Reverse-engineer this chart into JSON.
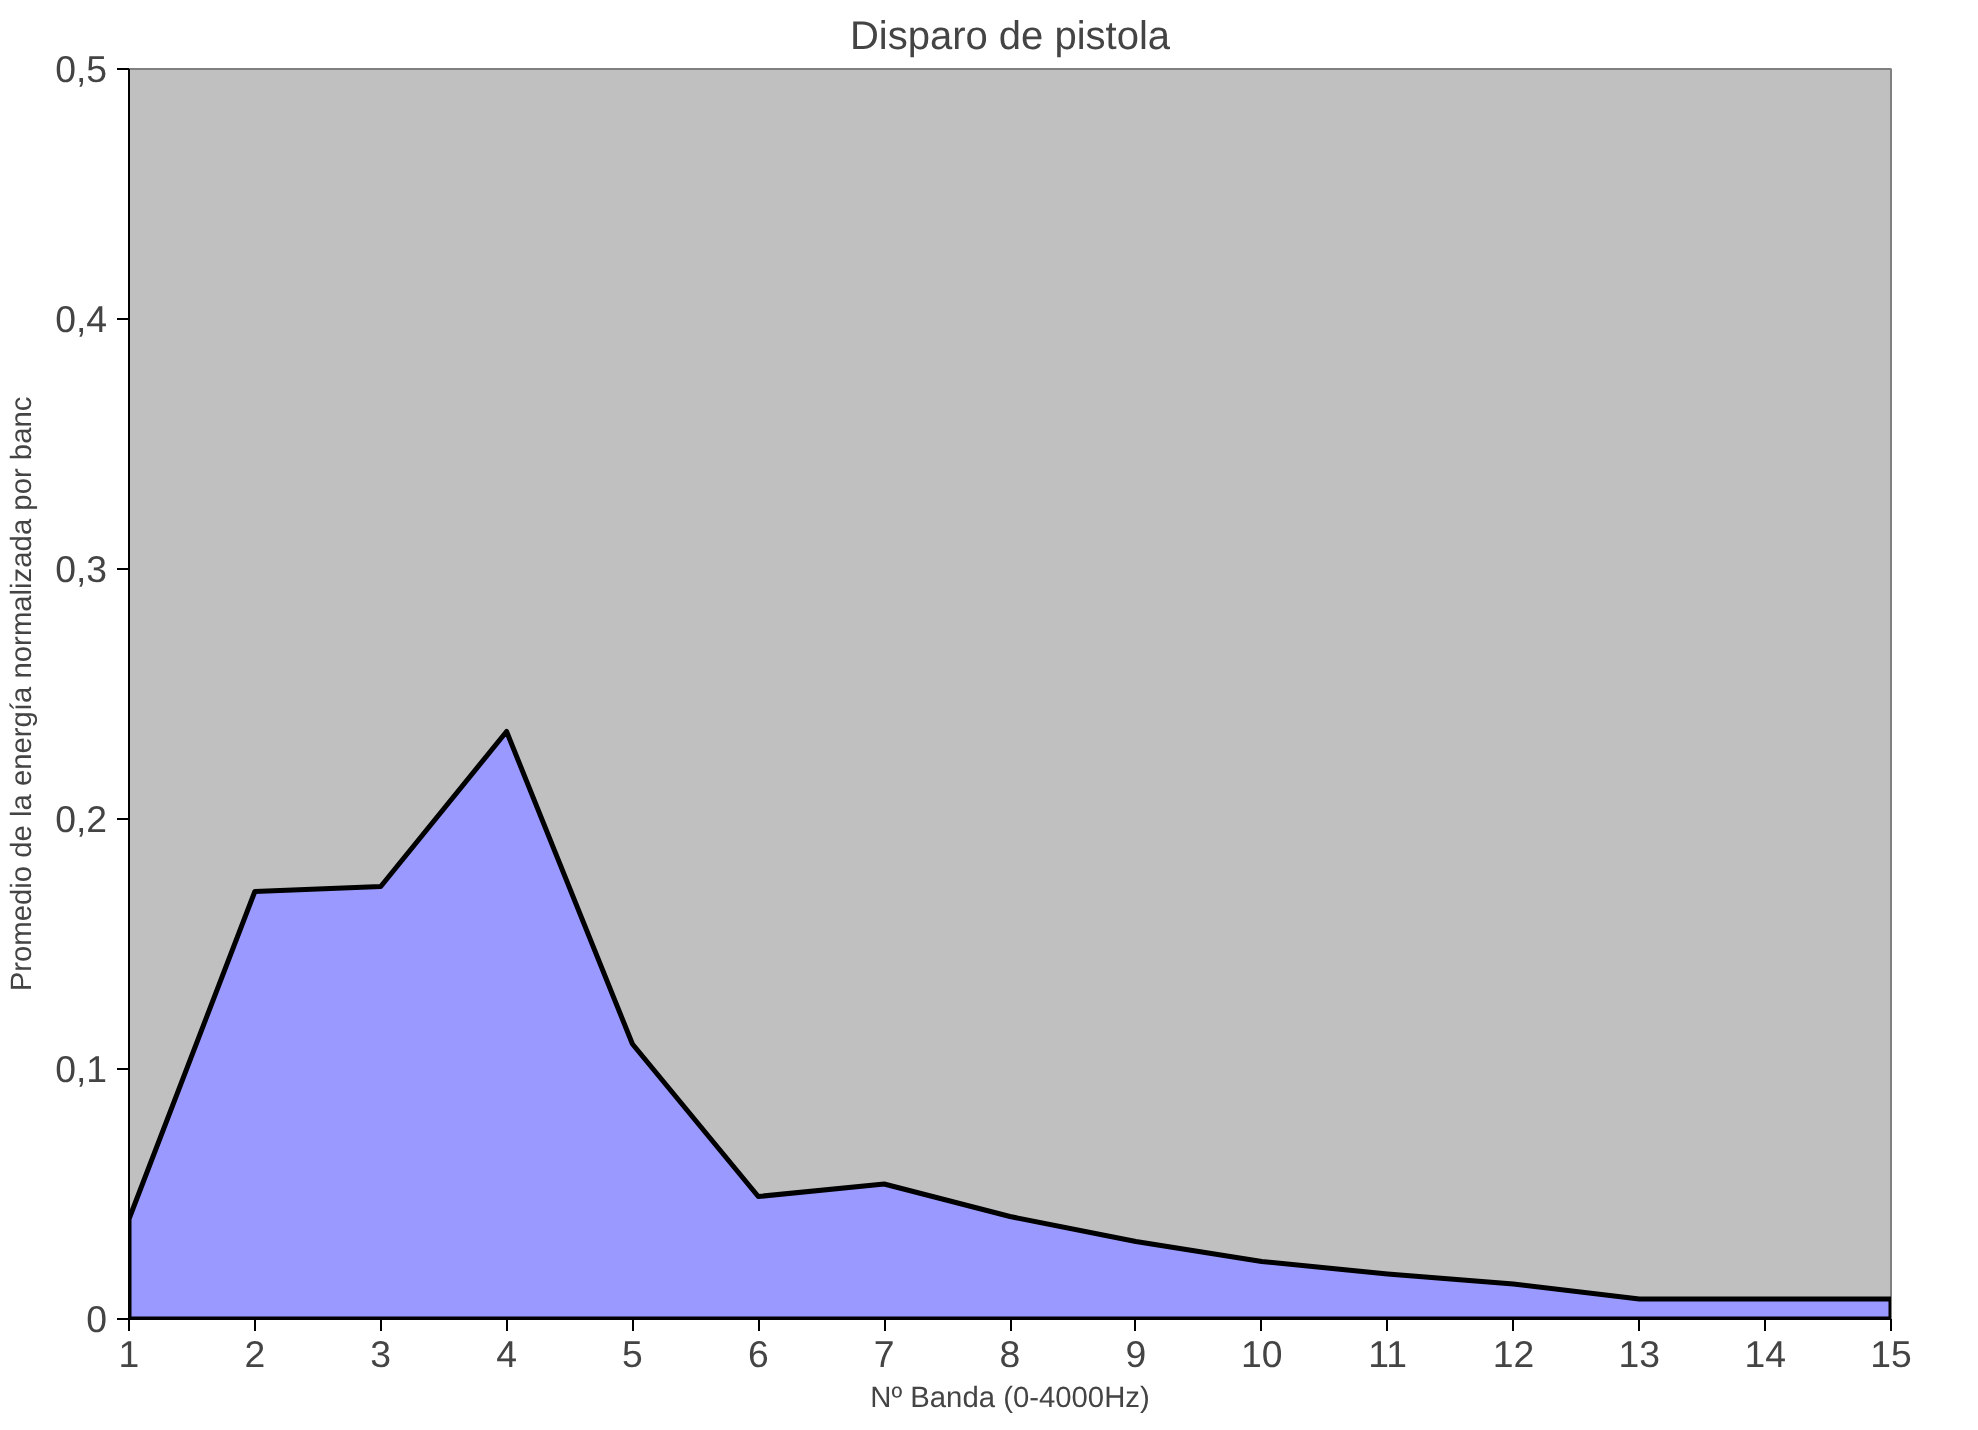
{
  "chart_data": {
    "type": "area",
    "title": "Disparo de pistola",
    "xlabel": "Nº Banda (0-4000Hz)",
    "ylabel": "Promedio de la energía normalizada por banc",
    "x": [
      1,
      2,
      3,
      4,
      5,
      6,
      7,
      8,
      9,
      10,
      11,
      12,
      13,
      14,
      15
    ],
    "series": [
      {
        "color": "#9999ff",
        "values": [
          0.04,
          0.171,
          0.173,
          0.235,
          0.11,
          0.049,
          0.054,
          0.041,
          0.031,
          0.023,
          0.018,
          0.014,
          0.008,
          0.008,
          0.008
        ]
      }
    ],
    "xlim": [
      1,
      15
    ],
    "xticks": [
      1,
      2,
      3,
      4,
      5,
      6,
      7,
      8,
      9,
      10,
      11,
      12,
      13,
      14,
      15
    ],
    "ylim": [
      0,
      0.5
    ],
    "yticks": [
      0,
      {
        "value": 0.1,
        "label": "0,1"
      },
      {
        "value": 0.2,
        "label": "0,2"
      },
      {
        "value": 0.3,
        "label": "0,3"
      },
      {
        "value": 0.4,
        "label": "0,4"
      },
      {
        "value": 0.5,
        "label": "0,5"
      }
    ],
    "grid": false
  }
}
